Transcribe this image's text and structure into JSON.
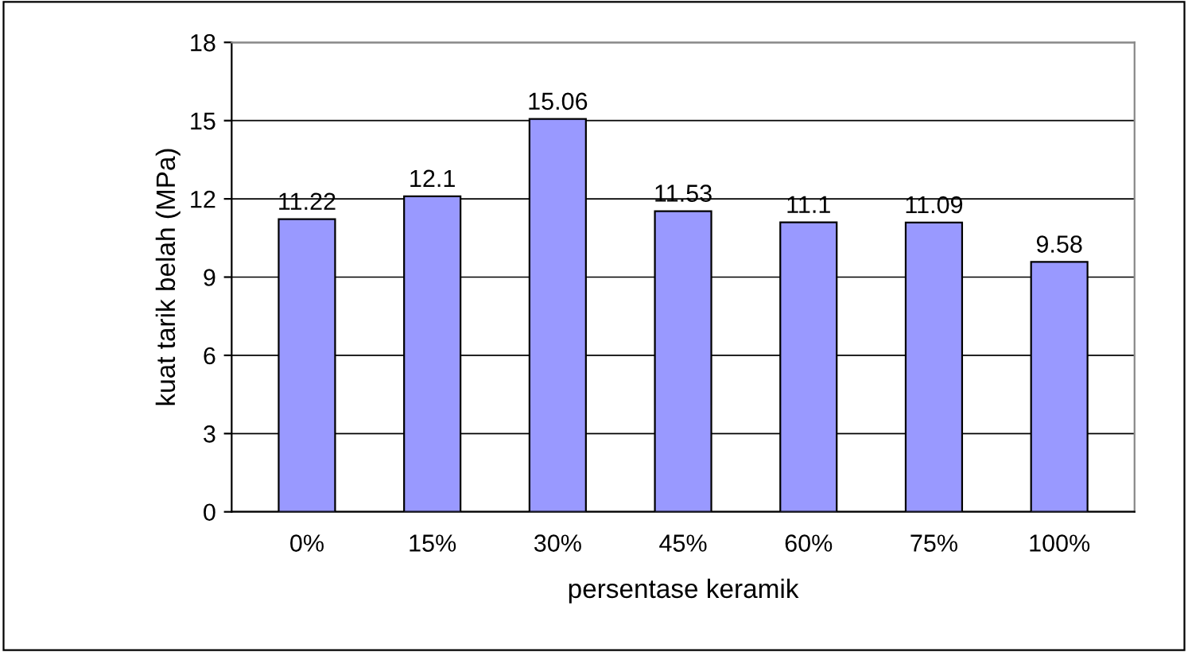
{
  "chart_data": {
    "type": "bar",
    "xlabel": "persentase keramik",
    "ylabel": "kuat tarik belah (MPa)",
    "categories": [
      "0%",
      "15%",
      "30%",
      "45%",
      "60%",
      "75%",
      "100%"
    ],
    "values": [
      11.22,
      12.1,
      15.06,
      11.53,
      11.1,
      11.09,
      9.58
    ],
    "color": "#9999ff",
    "ylim": [
      0,
      18
    ],
    "yticks": [
      0,
      3,
      6,
      9,
      12,
      15,
      18
    ],
    "grid": "y",
    "data_labels": true
  }
}
